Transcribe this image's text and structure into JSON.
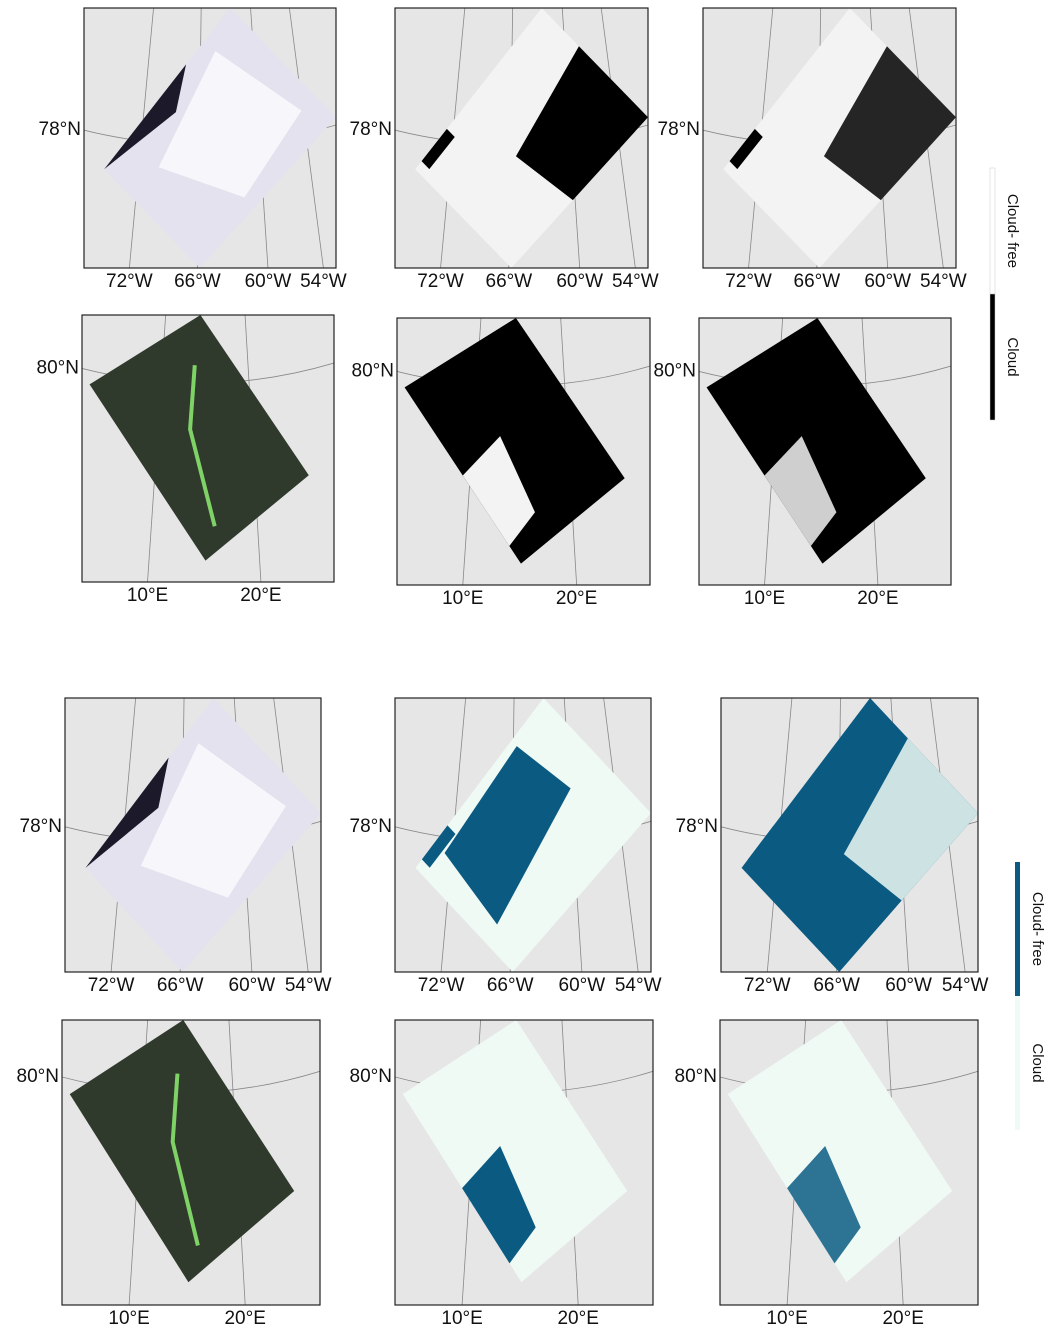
{
  "groups": [
    {
      "panels": [
        {
          "lat_label": "78°N",
          "lon_labels": [
            "72°W",
            "66°W",
            "60°W",
            "54°W"
          ]
        },
        {
          "lat_label": "78°N",
          "lon_labels": [
            "72°W",
            "66°W",
            "60°W",
            "54°W"
          ]
        },
        {
          "lat_label": "78°N",
          "lon_labels": [
            "72°W",
            "66°W",
            "60°W",
            "54°W"
          ]
        },
        {
          "lat_label": "80°N",
          "lon_labels": [
            "10°E",
            "20°E"
          ]
        },
        {
          "lat_label": "80°N",
          "lon_labels": [
            "10°E",
            "20°E"
          ]
        },
        {
          "lat_label": "80°N",
          "lon_labels": [
            "10°E",
            "20°E"
          ]
        }
      ],
      "legend": [
        "Cloud- free",
        "Cloud"
      ]
    },
    {
      "panels": [
        {
          "lat_label": "78°N",
          "lon_labels": [
            "72°W",
            "66°W",
            "60°W",
            "54°W"
          ]
        },
        {
          "lat_label": "78°N",
          "lon_labels": [
            "72°W",
            "66°W",
            "60°W",
            "54°W"
          ]
        },
        {
          "lat_label": "78°N",
          "lon_labels": [
            "72°W",
            "66°W",
            "60°W",
            "54°W"
          ]
        },
        {
          "lat_label": "80°N",
          "lon_labels": [
            "10°E",
            "20°E"
          ]
        },
        {
          "lat_label": "80°N",
          "lon_labels": [
            "10°E",
            "20°E"
          ]
        },
        {
          "lat_label": "80°N",
          "lon_labels": [
            "10°E",
            "20°E"
          ]
        }
      ],
      "legend": [
        "Cloud- free",
        "Cloud"
      ]
    }
  ]
}
